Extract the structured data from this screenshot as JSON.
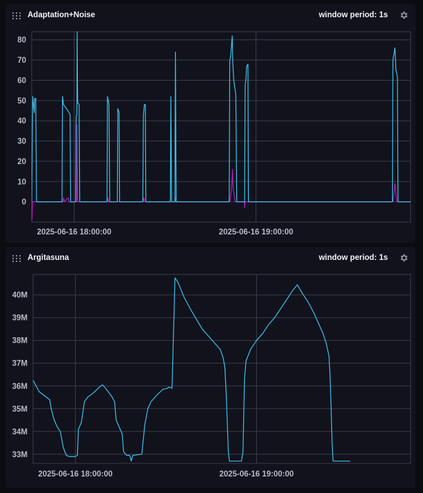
{
  "panels": [
    {
      "title": "Adaptation+Noise",
      "window_label": "window period: 1s"
    },
    {
      "title": "Argitasuna",
      "window_label": "window period: 1s"
    }
  ],
  "icons": {
    "drag": "drag-handle-icon",
    "settings": "gear-icon"
  },
  "colors": {
    "background": "#0b0c12",
    "panel": "#11121b",
    "grid": "#3a3c4a",
    "series_cyan": "#3ec3f0",
    "series_magenta": "#b51cc0"
  },
  "chart_data": [
    {
      "type": "line",
      "title": "Adaptation+Noise",
      "xlabel": "",
      "ylabel": "",
      "x_ticks": [
        "2025-06-16 18:00:00",
        "2025-06-16 19:00:00"
      ],
      "y_ticks": [
        "0",
        "10",
        "20",
        "30",
        "40",
        "50",
        "60",
        "70",
        "80"
      ],
      "ylim": [
        -10,
        84
      ],
      "x_range": [
        "2025-06-16 17:46",
        "2025-06-16 19:51"
      ],
      "grid": true,
      "legend": "none",
      "series": [
        {
          "color": "#3ec3f0",
          "points": [
            [
              "17:46:00",
              0
            ],
            [
              "17:46:20",
              52
            ],
            [
              "17:46:50",
              44
            ],
            [
              "17:47:00",
              51
            ],
            [
              "17:47:20",
              51
            ],
            [
              "17:47:35",
              0
            ],
            [
              "17:56:00",
              0
            ],
            [
              "17:56:10",
              52
            ],
            [
              "17:56:30",
              48
            ],
            [
              "17:57:30",
              46
            ],
            [
              "17:58:20",
              44
            ],
            [
              "17:58:40",
              43
            ],
            [
              "17:58:50",
              0
            ],
            [
              "18:00:30",
              0
            ],
            [
              "18:00:40",
              42
            ],
            [
              "18:00:55",
              43
            ],
            [
              "18:01:00",
              84
            ],
            [
              "18:01:10",
              49
            ],
            [
              "18:01:40",
              48
            ],
            [
              "18:01:50",
              0
            ],
            [
              "18:10:50",
              0
            ],
            [
              "18:11:00",
              52
            ],
            [
              "18:11:30",
              48
            ],
            [
              "18:11:45",
              0
            ],
            [
              "18:14:15",
              0
            ],
            [
              "18:14:25",
              46
            ],
            [
              "18:14:50",
              44
            ],
            [
              "18:15:00",
              0
            ],
            [
              "18:22:40",
              0
            ],
            [
              "18:22:50",
              42
            ],
            [
              "18:23:10",
              48
            ],
            [
              "18:23:30",
              48
            ],
            [
              "18:23:40",
              0
            ],
            [
              "18:31:45",
              0
            ],
            [
              "18:31:55",
              52
            ],
            [
              "18:32:10",
              0
            ],
            [
              "18:33:15",
              0
            ],
            [
              "18:33:25",
              74
            ],
            [
              "18:33:40",
              0
            ],
            [
              "18:51:10",
              0
            ],
            [
              "18:51:20",
              70
            ],
            [
              "18:51:40",
              72
            ],
            [
              "18:52:00",
              79
            ],
            [
              "18:52:10",
              82
            ],
            [
              "18:52:20",
              69
            ],
            [
              "18:52:40",
              60
            ],
            [
              "18:53:20",
              53
            ],
            [
              "18:53:40",
              0
            ],
            [
              "18:56:15",
              0
            ],
            [
              "18:56:25",
              58
            ],
            [
              "18:56:40",
              60
            ],
            [
              "18:56:55",
              67
            ],
            [
              "18:57:20",
              68
            ],
            [
              "18:57:30",
              0
            ],
            [
              "19:45:00",
              0
            ],
            [
              "19:45:10",
              70
            ],
            [
              "19:45:30",
              73
            ],
            [
              "19:45:50",
              76
            ],
            [
              "19:46:10",
              65
            ],
            [
              "19:46:40",
              62
            ],
            [
              "19:46:50",
              0
            ],
            [
              "19:51:00",
              0
            ]
          ]
        },
        {
          "color": "#b51cc0",
          "points": [
            [
              "17:46:00",
              0
            ],
            [
              "17:46:05",
              -9
            ],
            [
              "17:46:15",
              0
            ],
            [
              "17:56:20",
              0
            ],
            [
              "17:56:30",
              2
            ],
            [
              "17:56:50",
              0
            ],
            [
              "17:58:00",
              2
            ],
            [
              "17:58:20",
              0
            ],
            [
              "18:00:50",
              0
            ],
            [
              "18:01:00",
              38
            ],
            [
              "18:01:10",
              0
            ],
            [
              "18:11:00",
              0
            ],
            [
              "18:11:10",
              2
            ],
            [
              "18:11:20",
              0
            ],
            [
              "18:22:50",
              0
            ],
            [
              "18:23:00",
              2
            ],
            [
              "18:23:20",
              0
            ],
            [
              "18:33:25",
              0
            ],
            [
              "18:33:30",
              2
            ],
            [
              "18:33:40",
              0
            ],
            [
              "18:51:20",
              0
            ],
            [
              "18:51:40",
              3
            ],
            [
              "18:52:00",
              8
            ],
            [
              "18:52:15",
              16
            ],
            [
              "18:52:30",
              6
            ],
            [
              "18:52:50",
              3
            ],
            [
              "18:53:10",
              0
            ],
            [
              "18:56:10",
              0
            ],
            [
              "18:56:15",
              -3
            ],
            [
              "18:56:25",
              0
            ],
            [
              "19:45:10",
              0
            ],
            [
              "19:45:30",
              4
            ],
            [
              "19:45:50",
              9
            ],
            [
              "19:46:10",
              4
            ],
            [
              "19:46:30",
              0
            ],
            [
              "19:51:00",
              0
            ]
          ]
        }
      ]
    },
    {
      "type": "line",
      "title": "Argitasuna",
      "xlabel": "",
      "ylabel": "",
      "x_ticks": [
        "2025-06-16 18:00:00",
        "2025-06-16 19:00:00"
      ],
      "y_ticks": [
        "33M",
        "34M",
        "35M",
        "36M",
        "37M",
        "38M",
        "39M",
        "40M"
      ],
      "ylim": [
        32.6,
        40.9
      ],
      "x_range": [
        "2025-06-16 17:46",
        "2025-06-16 19:51"
      ],
      "grid": true,
      "legend": "none",
      "series": [
        {
          "color": "#3ec3f0",
          "points": [
            [
              "17:46:00",
              36.25
            ],
            [
              "17:48:00",
              35.75
            ],
            [
              "17:50:00",
              35.55
            ],
            [
              "17:51:30",
              35.4
            ],
            [
              "17:52:00",
              35.0
            ],
            [
              "17:53:00",
              34.5
            ],
            [
              "17:54:00",
              34.2
            ],
            [
              "17:55:00",
              34.0
            ],
            [
              "17:56:00",
              33.3
            ],
            [
              "17:57:00",
              32.95
            ],
            [
              "17:58:00",
              32.9
            ],
            [
              "18:00:00",
              32.9
            ],
            [
              "18:00:40",
              32.95
            ],
            [
              "18:01:00",
              34.1
            ],
            [
              "18:02:00",
              34.4
            ],
            [
              "18:03:00",
              35.3
            ],
            [
              "18:04:00",
              35.5
            ],
            [
              "18:06:00",
              35.7
            ],
            [
              "18:08:00",
              35.95
            ],
            [
              "18:09:00",
              36.05
            ],
            [
              "18:10:00",
              35.9
            ],
            [
              "18:12:00",
              35.55
            ],
            [
              "18:13:00",
              35.3
            ],
            [
              "18:13:30",
              34.5
            ],
            [
              "18:14:30",
              34.2
            ],
            [
              "18:15:30",
              33.9
            ],
            [
              "18:16:00",
              33.1
            ],
            [
              "18:17:00",
              32.95
            ],
            [
              "18:18:00",
              32.95
            ],
            [
              "18:18:30",
              32.7
            ],
            [
              "18:19:00",
              32.95
            ],
            [
              "18:22:00",
              33.0
            ],
            [
              "18:23:00",
              34.3
            ],
            [
              "18:24:00",
              35.0
            ],
            [
              "18:25:00",
              35.3
            ],
            [
              "18:27:00",
              35.6
            ],
            [
              "18:29:00",
              35.85
            ],
            [
              "18:30:30",
              35.9
            ],
            [
              "18:31:00",
              35.95
            ],
            [
              "18:32:00",
              35.9
            ],
            [
              "18:33:00",
              40.75
            ],
            [
              "18:34:00",
              40.55
            ],
            [
              "18:36:00",
              39.9
            ],
            [
              "18:38:00",
              39.4
            ],
            [
              "18:40:00",
              38.95
            ],
            [
              "18:42:00",
              38.5
            ],
            [
              "18:44:00",
              38.2
            ],
            [
              "18:46:00",
              37.9
            ],
            [
              "18:48:00",
              37.6
            ],
            [
              "18:49:00",
              37.2
            ],
            [
              "18:49:30",
              36.8
            ],
            [
              "18:50:00",
              35.5
            ],
            [
              "18:50:20",
              34.3
            ],
            [
              "18:50:40",
              33.1
            ],
            [
              "18:51:00",
              32.7
            ],
            [
              "18:53:00",
              32.7
            ],
            [
              "18:55:00",
              32.7
            ],
            [
              "18:55:30",
              33.1
            ],
            [
              "18:56:00",
              36.3
            ],
            [
              "18:56:30",
              37.1
            ],
            [
              "18:58:00",
              37.6
            ],
            [
              "19:00:00",
              38.0
            ],
            [
              "19:02:00",
              38.3
            ],
            [
              "19:04:00",
              38.7
            ],
            [
              "19:06:00",
              39.0
            ],
            [
              "19:08:00",
              39.4
            ],
            [
              "19:10:00",
              39.8
            ],
            [
              "19:12:00",
              40.2
            ],
            [
              "19:13:30",
              40.45
            ],
            [
              "19:15:00",
              40.1
            ],
            [
              "19:17:00",
              39.7
            ],
            [
              "19:19:00",
              39.2
            ],
            [
              "19:21:00",
              38.6
            ],
            [
              "19:22:00",
              38.3
            ],
            [
              "19:23:00",
              37.9
            ],
            [
              "19:23:40",
              37.5
            ],
            [
              "19:24:00",
              37.3
            ],
            [
              "19:24:20",
              36.4
            ],
            [
              "19:24:40",
              35.1
            ],
            [
              "19:25:00",
              33.5
            ],
            [
              "19:25:20",
              32.7
            ],
            [
              "19:27:00",
              32.7
            ],
            [
              "19:31:00",
              32.7
            ]
          ]
        }
      ]
    }
  ]
}
